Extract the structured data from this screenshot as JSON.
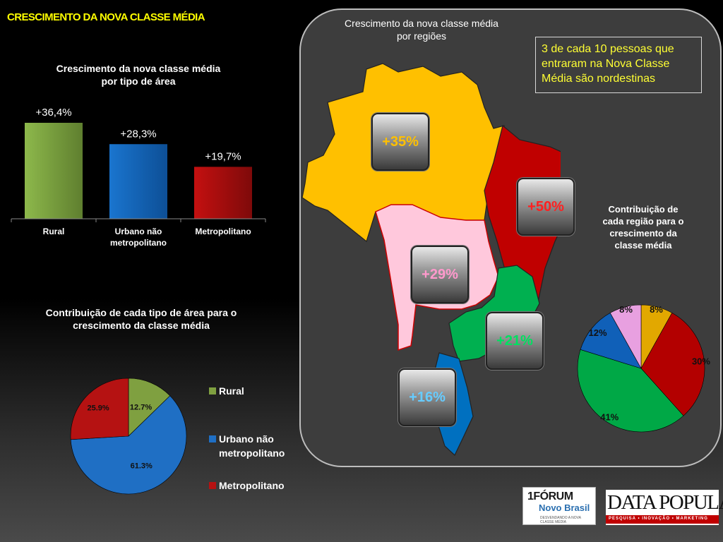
{
  "page": {
    "title": "CRESCIMENTO DA NOVA CLASSE MÉDIA"
  },
  "bar_chart": {
    "title_line1": "Crescimento da nova classe média",
    "title_line2": "por  tipo  de área"
  },
  "area_pie": {
    "title_line1": "Contribuição de cada tipo de área para o",
    "title_line2": "crescimento da classe média",
    "legend": [
      {
        "label_line1": "Rural",
        "label_line2": "",
        "color": "#7fa040"
      },
      {
        "label_line1": "Urbano não",
        "label_line2": "metropolitano",
        "color": "#1f6fc4"
      },
      {
        "label_line1": "Metropolitano",
        "label_line2": "",
        "color": "#b51212"
      }
    ]
  },
  "map": {
    "title_line1": "Crescimento da nova classe média",
    "title_line2": "por regiões",
    "callout": "3 de cada 10 pessoas que entraram na Nova Classe Média são nordestinas",
    "regions": [
      {
        "region_badge": "+35%",
        "color": "#ffc000",
        "text_color": "#ffc000"
      },
      {
        "region_badge": "+50%",
        "color": "#c00000",
        "text_color": "#ff2020"
      },
      {
        "region_badge": "+29%",
        "color": "#ffc8dc",
        "text_color": "#ff99cc"
      },
      {
        "region_badge": "+21%",
        "color": "#00b050",
        "text_color": "#00e060"
      },
      {
        "region_badge": "+16%",
        "color": "#0070c0",
        "text_color": "#66ccff"
      }
    ]
  },
  "region_pie": {
    "title_line1": "Contribuição de",
    "title_line2": "cada região para o",
    "title_line3": "crescimento da",
    "title_line4": "classe média"
  },
  "logos": {
    "forum_line1": "1FÓRUM",
    "forum_line2": "Novo Brasil",
    "forum_tagline": "DESVENDANDO A NOVA CLASSE MÉDIA",
    "datapopular_name": "DATA POPULAR",
    "datapopular_tagline": "PESQUISA • INOVAÇÃO • MARKETING"
  },
  "chart_data": [
    {
      "type": "bar",
      "title": "Crescimento da nova classe média por  tipo  de área",
      "categories": [
        "Rural",
        "Urbano não metropolitano",
        "Metropolitano"
      ],
      "category_lines": [
        [
          "Rural"
        ],
        [
          "Urbano não",
          "metropolitano"
        ],
        [
          "Metropolitano"
        ]
      ],
      "values": [
        36.4,
        28.3,
        19.7
      ],
      "data_labels": [
        "+36,4%",
        "+28,3%",
        "+19,7%"
      ],
      "colors": [
        "#8db84b",
        "#1a75cf",
        "#c41010"
      ],
      "ylim": [
        0,
        40
      ]
    },
    {
      "type": "pie",
      "title": "Contribuição de cada tipo de área para o crescimento da classe média",
      "categories": [
        "Rural",
        "Urbano não metropolitano",
        "Metropolitano"
      ],
      "values": [
        12.7,
        61.3,
        25.9
      ],
      "data_labels": [
        "12.7%",
        "61.3%",
        "25.9%"
      ],
      "colors": [
        "#7fa040",
        "#1f6fc4",
        "#b51212"
      ],
      "legend_placement": "right"
    },
    {
      "type": "pie",
      "title": "Contribuição de cada região para o crescimento da classe média",
      "values": [
        8,
        30,
        41,
        12,
        8
      ],
      "data_labels": [
        "8%",
        "30%",
        "41%",
        "12%",
        "8%"
      ],
      "colors": [
        "#e2a800",
        "#b30000",
        "#00a846",
        "#1060b8",
        "#e8a0e0"
      ]
    }
  ]
}
